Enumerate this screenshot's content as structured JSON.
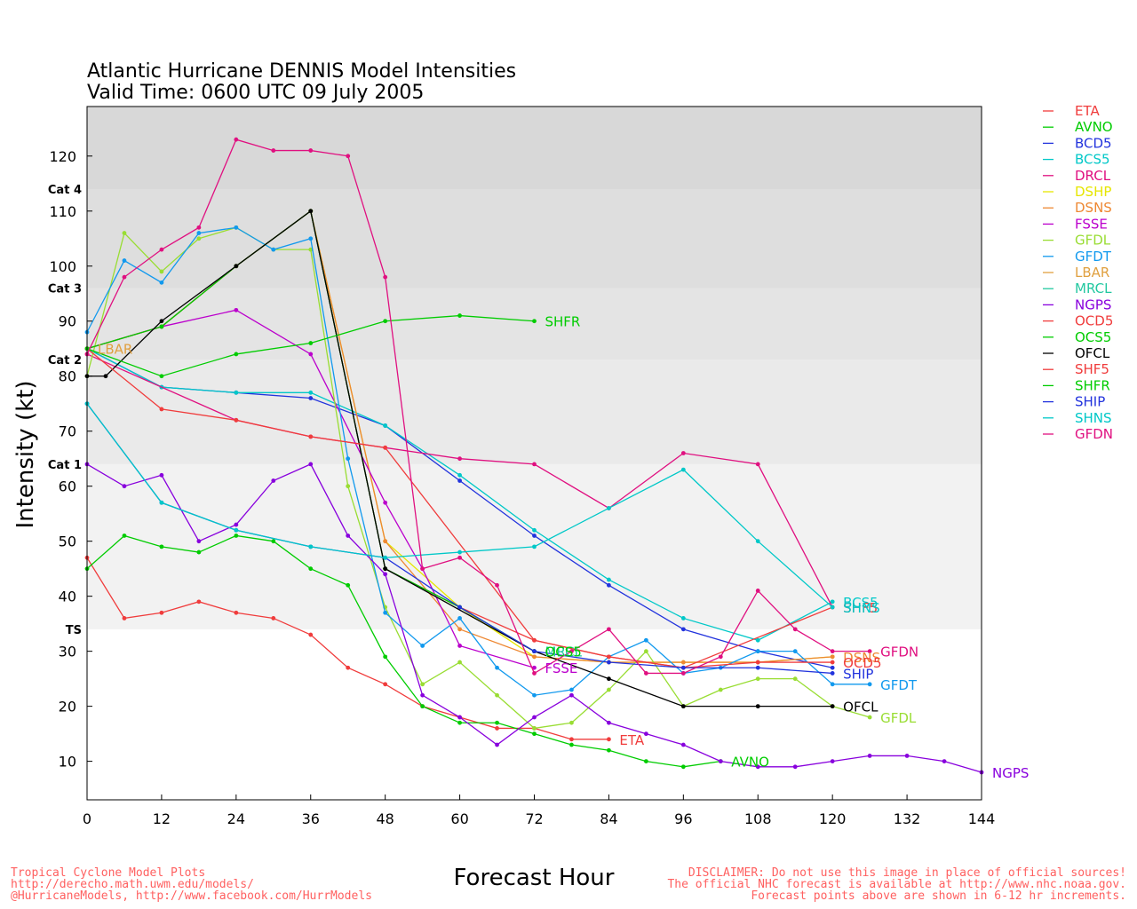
{
  "title_line1": "Atlantic Hurricane DENNIS Model Intensities",
  "title_line2": "Valid Time: 0600 UTC 09 July 2005",
  "xlabel": "Forecast Hour",
  "ylabel": "Intensity (kt)",
  "footer_left": [
    "Tropical Cyclone Model Plots",
    "http://derecho.math.uwm.edu/models/",
    "@HurricaneModels, http://www.facebook.com/HurrModels"
  ],
  "footer_right": [
    "DISCLAIMER: Do not use this image in place of official sources!",
    "The official NHC forecast is available at http://www.nhc.noaa.gov.",
    "Forecast points above are shown in 6-12 hr increments."
  ],
  "chart_data": {
    "type": "line",
    "title": "Atlantic Hurricane DENNIS Model Intensities",
    "subtitle": "Valid Time: 0600 UTC 09 July 2005",
    "xlabel": "Forecast Hour",
    "ylabel": "Intensity (kt)",
    "xlim": [
      0,
      144
    ],
    "ylim": [
      3,
      129
    ],
    "xticks": [
      0,
      12,
      24,
      36,
      48,
      60,
      72,
      84,
      96,
      108,
      120,
      132,
      144
    ],
    "yticks": [
      10,
      20,
      30,
      40,
      50,
      60,
      70,
      80,
      90,
      100,
      110,
      120
    ],
    "categories": [
      {
        "label": "TS",
        "threshold": 34
      },
      {
        "label": "Cat 1",
        "threshold": 64
      },
      {
        "label": "Cat 2",
        "threshold": 83
      },
      {
        "label": "Cat 3",
        "threshold": 96
      },
      {
        "label": "Cat 4",
        "threshold": 114
      }
    ],
    "band_colors": [
      "#ffffff",
      "#f2f2f2",
      "#eaeaea",
      "#e4e4e4",
      "#dedede",
      "#d8d8d8"
    ],
    "legend_position": "right",
    "series": [
      {
        "name": "ETA",
        "color": "#f03c3c",
        "label": "ETA",
        "points": [
          [
            0,
            47
          ],
          [
            6,
            36
          ],
          [
            12,
            37
          ],
          [
            18,
            39
          ],
          [
            24,
            37
          ],
          [
            30,
            36
          ],
          [
            36,
            33
          ],
          [
            42,
            27
          ],
          [
            48,
            24
          ],
          [
            54,
            20
          ],
          [
            60,
            18
          ],
          [
            66,
            16
          ],
          [
            72,
            16
          ],
          [
            78,
            14
          ],
          [
            84,
            14
          ]
        ]
      },
      {
        "name": "AVNO",
        "color": "#00cc00",
        "label": "AVNO",
        "points": [
          [
            0,
            45
          ],
          [
            6,
            51
          ],
          [
            12,
            49
          ],
          [
            18,
            48
          ],
          [
            24,
            51
          ],
          [
            30,
            50
          ],
          [
            36,
            45
          ],
          [
            42,
            42
          ],
          [
            48,
            29
          ],
          [
            54,
            20
          ],
          [
            60,
            17
          ],
          [
            66,
            17
          ],
          [
            72,
            15
          ],
          [
            78,
            13
          ],
          [
            84,
            12
          ],
          [
            90,
            10
          ],
          [
            96,
            9
          ],
          [
            102,
            10
          ]
        ]
      },
      {
        "name": "BCD5",
        "color": "#2233dd",
        "label": "",
        "points": [
          [
            0,
            85
          ],
          [
            12,
            78
          ],
          [
            24,
            77
          ],
          [
            36,
            76
          ],
          [
            48,
            71
          ],
          [
            60,
            61
          ],
          [
            72,
            51
          ],
          [
            84,
            42
          ],
          [
            96,
            34
          ],
          [
            108,
            30
          ],
          [
            120,
            27
          ]
        ]
      },
      {
        "name": "BCS5",
        "color": "#00c8c8",
        "label": "BCS5",
        "points": [
          [
            0,
            85
          ],
          [
            12,
            78
          ],
          [
            24,
            77
          ],
          [
            36,
            77
          ],
          [
            48,
            71
          ],
          [
            60,
            62
          ],
          [
            72,
            52
          ],
          [
            84,
            43
          ],
          [
            96,
            36
          ],
          [
            108,
            32
          ],
          [
            120,
            39
          ]
        ]
      },
      {
        "name": "DRCL",
        "color": "#e01080",
        "label": "",
        "points": [
          [
            0,
            84
          ],
          [
            24,
            72
          ],
          [
            36,
            69
          ],
          [
            48,
            67
          ],
          [
            60,
            65
          ],
          [
            72,
            64
          ],
          [
            84,
            56
          ],
          [
            96,
            66
          ],
          [
            108,
            64
          ],
          [
            120,
            38
          ]
        ]
      },
      {
        "name": "DSHP",
        "color": "#e6e600",
        "label": "",
        "points": [
          [
            0,
            85
          ],
          [
            12,
            89
          ],
          [
            24,
            100
          ],
          [
            36,
            110
          ],
          [
            48,
            50
          ],
          [
            60,
            38
          ],
          [
            72,
            29
          ],
          [
            84,
            28
          ],
          [
            96,
            28
          ],
          [
            108,
            28
          ],
          [
            120,
            29
          ]
        ]
      },
      {
        "name": "DSNS",
        "color": "#ee8833",
        "label": "DSNS",
        "points": [
          [
            0,
            85
          ],
          [
            12,
            89
          ],
          [
            24,
            100
          ],
          [
            36,
            110
          ],
          [
            48,
            50
          ],
          [
            60,
            34
          ],
          [
            72,
            29
          ],
          [
            84,
            28
          ],
          [
            96,
            28
          ],
          [
            108,
            28
          ],
          [
            120,
            29
          ]
        ]
      },
      {
        "name": "FSSE",
        "color": "#bb00cc",
        "label": "FSSE",
        "points": [
          [
            0,
            85
          ],
          [
            12,
            89
          ],
          [
            24,
            92
          ],
          [
            36,
            84
          ],
          [
            48,
            57
          ],
          [
            54,
            45
          ],
          [
            60,
            31
          ],
          [
            72,
            27
          ]
        ]
      },
      {
        "name": "GFDL",
        "color": "#99dd33",
        "label": "GFDL",
        "points": [
          [
            0,
            80
          ],
          [
            6,
            106
          ],
          [
            12,
            99
          ],
          [
            18,
            105
          ],
          [
            24,
            107
          ],
          [
            30,
            103
          ],
          [
            36,
            103
          ],
          [
            42,
            60
          ],
          [
            48,
            38
          ],
          [
            54,
            24
          ],
          [
            60,
            28
          ],
          [
            66,
            22
          ],
          [
            72,
            16
          ],
          [
            78,
            17
          ],
          [
            84,
            23
          ],
          [
            90,
            30
          ],
          [
            96,
            20
          ],
          [
            102,
            23
          ],
          [
            108,
            25
          ],
          [
            114,
            25
          ],
          [
            120,
            20
          ],
          [
            126,
            18
          ]
        ]
      },
      {
        "name": "GFDT",
        "color": "#1199ee",
        "label": "GFDT",
        "points": [
          [
            0,
            88
          ],
          [
            6,
            101
          ],
          [
            12,
            97
          ],
          [
            18,
            106
          ],
          [
            24,
            107
          ],
          [
            30,
            103
          ],
          [
            36,
            105
          ],
          [
            42,
            65
          ],
          [
            48,
            37
          ],
          [
            54,
            31
          ],
          [
            60,
            36
          ],
          [
            66,
            27
          ],
          [
            72,
            22
          ],
          [
            78,
            23
          ],
          [
            84,
            29
          ],
          [
            90,
            32
          ],
          [
            96,
            26
          ],
          [
            102,
            27
          ],
          [
            108,
            30
          ],
          [
            114,
            30
          ],
          [
            120,
            24
          ],
          [
            126,
            24
          ]
        ]
      },
      {
        "name": "LBAR",
        "color": "#e0a040",
        "label": "LBAR",
        "points": [
          [
            0,
            85
          ]
        ]
      },
      {
        "name": "MRCL",
        "color": "#22c8a0",
        "label": "MRCL",
        "points": [
          [
            0,
            85
          ],
          [
            12,
            89
          ],
          [
            24,
            100
          ],
          [
            36,
            110
          ],
          [
            48,
            45
          ],
          [
            60,
            38
          ],
          [
            72,
            30
          ]
        ]
      },
      {
        "name": "NGPS",
        "color": "#8800dd",
        "label": "NGPS",
        "points": [
          [
            0,
            64
          ],
          [
            6,
            60
          ],
          [
            12,
            62
          ],
          [
            18,
            50
          ],
          [
            24,
            53
          ],
          [
            30,
            61
          ],
          [
            36,
            64
          ],
          [
            42,
            51
          ],
          [
            48,
            44
          ],
          [
            54,
            22
          ],
          [
            60,
            18
          ],
          [
            66,
            13
          ],
          [
            72,
            18
          ],
          [
            78,
            22
          ],
          [
            84,
            17
          ],
          [
            90,
            15
          ],
          [
            96,
            13
          ],
          [
            102,
            10
          ],
          [
            108,
            9
          ],
          [
            114,
            9
          ],
          [
            120,
            10
          ],
          [
            126,
            11
          ],
          [
            132,
            11
          ],
          [
            138,
            10
          ],
          [
            144,
            8
          ]
        ]
      },
      {
        "name": "OCD5",
        "color": "#f03c3c",
        "label": "OCD5",
        "points": [
          [
            0,
            85
          ],
          [
            12,
            89
          ],
          [
            24,
            100
          ],
          [
            36,
            110
          ],
          [
            48,
            45
          ],
          [
            60,
            38
          ],
          [
            72,
            32
          ],
          [
            84,
            29
          ],
          [
            96,
            27
          ],
          [
            108,
            28
          ],
          [
            120,
            28
          ]
        ]
      },
      {
        "name": "OCS5",
        "color": "#00cc00",
        "label": "OCS5",
        "points": [
          [
            0,
            85
          ],
          [
            12,
            89
          ],
          [
            24,
            100
          ],
          [
            36,
            110
          ],
          [
            48,
            45
          ],
          [
            60,
            38
          ],
          [
            72,
            30
          ]
        ]
      },
      {
        "name": "OFCL",
        "color": "#000000",
        "label": "OFCL",
        "points": [
          [
            0,
            80
          ],
          [
            3,
            80
          ],
          [
            12,
            90
          ],
          [
            24,
            100
          ],
          [
            36,
            110
          ],
          [
            48,
            45
          ],
          [
            72,
            30
          ],
          [
            84,
            25
          ],
          [
            96,
            20
          ],
          [
            108,
            20
          ],
          [
            120,
            20
          ]
        ]
      },
      {
        "name": "SHF5",
        "color": "#f03c3c",
        "label": "SHF5",
        "points": [
          [
            0,
            85
          ],
          [
            12,
            74
          ],
          [
            24,
            72
          ],
          [
            36,
            69
          ],
          [
            48,
            67
          ],
          [
            72,
            32
          ],
          [
            84,
            29
          ],
          [
            96,
            27
          ],
          [
            120,
            38
          ]
        ]
      },
      {
        "name": "SHFR",
        "color": "#00cc00",
        "label": "SHFR",
        "points": [
          [
            0,
            85
          ],
          [
            12,
            80
          ],
          [
            24,
            84
          ],
          [
            36,
            86
          ],
          [
            48,
            90
          ],
          [
            60,
            91
          ],
          [
            72,
            90
          ]
        ]
      },
      {
        "name": "SHIP",
        "color": "#2233dd",
        "label": "SHIP",
        "points": [
          [
            0,
            75
          ],
          [
            12,
            57
          ],
          [
            24,
            52
          ],
          [
            36,
            49
          ],
          [
            48,
            47
          ],
          [
            60,
            38
          ],
          [
            72,
            30
          ],
          [
            84,
            28
          ],
          [
            96,
            27
          ],
          [
            108,
            27
          ],
          [
            120,
            26
          ]
        ]
      },
      {
        "name": "SHNS",
        "color": "#00c8c8",
        "label": "SHNS",
        "points": [
          [
            0,
            75
          ],
          [
            12,
            57
          ],
          [
            24,
            52
          ],
          [
            36,
            49
          ],
          [
            48,
            47
          ],
          [
            60,
            48
          ],
          [
            72,
            49
          ],
          [
            84,
            56
          ],
          [
            96,
            63
          ],
          [
            108,
            50
          ],
          [
            120,
            38
          ]
        ]
      },
      {
        "name": "GFDN",
        "color": "#e01080",
        "label": "GFDN",
        "points": [
          [
            0,
            84
          ],
          [
            6,
            98
          ],
          [
            12,
            103
          ],
          [
            18,
            107
          ],
          [
            24,
            123
          ],
          [
            30,
            121
          ],
          [
            36,
            121
          ],
          [
            42,
            120
          ],
          [
            48,
            98
          ],
          [
            54,
            45
          ],
          [
            60,
            47
          ],
          [
            66,
            42
          ],
          [
            72,
            26
          ],
          [
            78,
            30
          ],
          [
            84,
            34
          ],
          [
            90,
            26
          ],
          [
            96,
            26
          ],
          [
            102,
            29
          ],
          [
            108,
            41
          ],
          [
            114,
            34
          ],
          [
            120,
            30
          ],
          [
            126,
            30
          ]
        ]
      }
    ]
  }
}
